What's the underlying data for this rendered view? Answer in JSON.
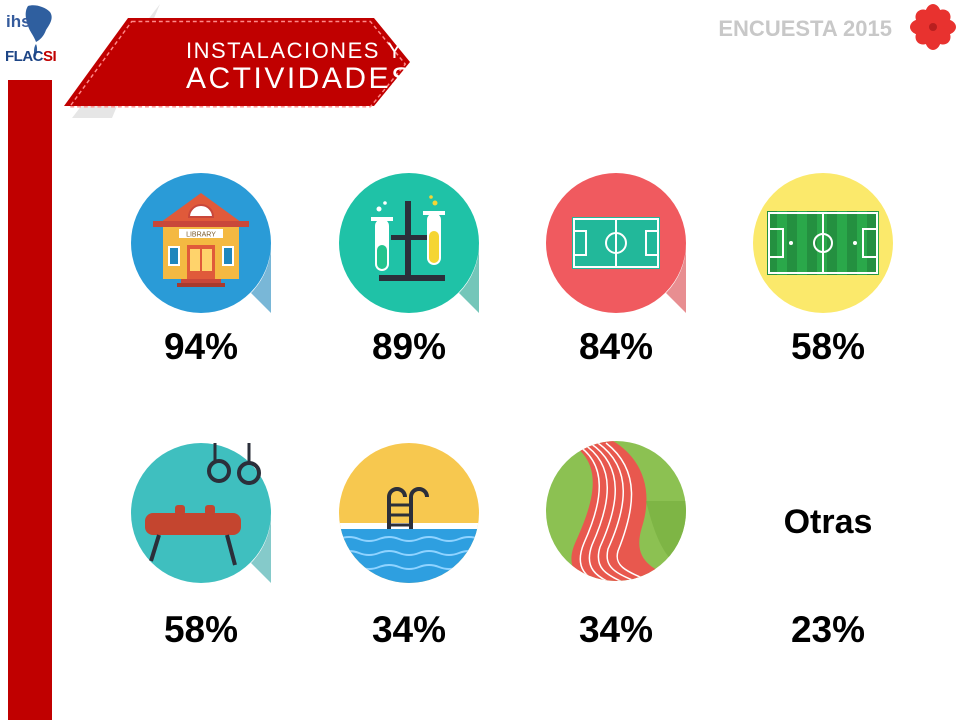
{
  "logo": {
    "ihs": "ihs",
    "flacsi_main": "FLAC",
    "flacsi_accent": "SI"
  },
  "banner": {
    "line1": "INSTALACIONES Y",
    "line2": "ACTIVIDADES"
  },
  "survey_label": "ENCUESTA 2015",
  "items": [
    {
      "icon": "library-icon",
      "library_sign": "LIBRARY",
      "percent": "94%"
    },
    {
      "icon": "laboratory-icon",
      "percent": "89%"
    },
    {
      "icon": "court-icon",
      "percent": "84%"
    },
    {
      "icon": "soccer-field-icon",
      "percent": "58%"
    },
    {
      "icon": "gymnastics-icon",
      "percent": "58%"
    },
    {
      "icon": "swimming-pool-icon",
      "percent": "34%"
    },
    {
      "icon": "running-track-icon",
      "percent": "34%"
    },
    {
      "label": "Otras",
      "percent": "23%"
    }
  ],
  "colors": {
    "accent_red": "#c00000",
    "library_bg": "#2a9bd7",
    "lab_bg": "#1fc2a7",
    "court_bg": "#f05a5f",
    "soccer_bg": "#fbe96b",
    "gym_bg": "#3fbfbf",
    "pool_bg": "#f7c84f",
    "track_bg": "#8cc152"
  }
}
